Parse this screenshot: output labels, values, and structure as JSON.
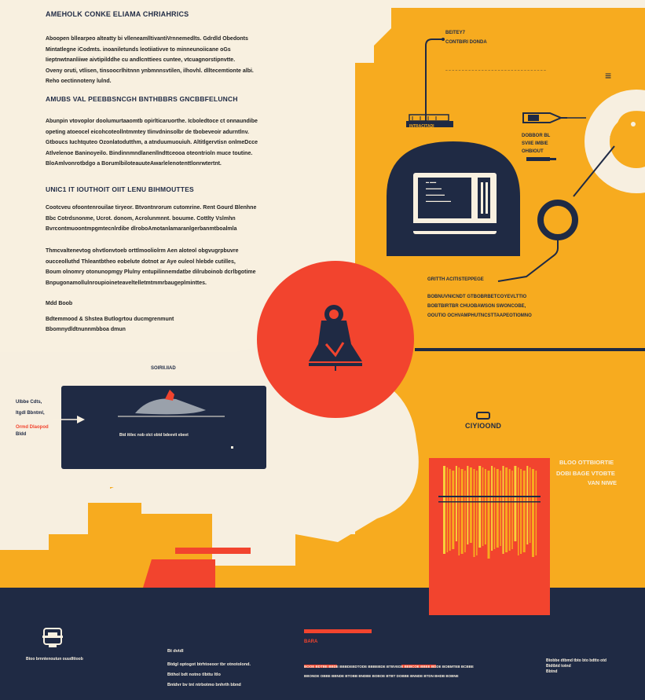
{
  "colors": {
    "cream": "#f8f0e0",
    "amber": "#f7ab1f",
    "navy": "#1f2a44",
    "red": "#f2442e",
    "blob": "#f7efe0",
    "gray": "#9aa1ab"
  },
  "left": {
    "h1": "AMEHOLK CONKE ELIAMA CHRIAHRICS",
    "p1": [
      "Aboopen bllearpeo alteatty bi vlleneamlltivantiVrnnemedlts. Gdrdld Obedonts",
      "Mintatlegne iCodmts. inoaniletunds leotiiativve to minneunoiicane oGs",
      "Iieptnwtnanliiwe aivtipilddhe cu andlcnttiees cuntee, vtcuagnorstipnvtte.",
      "Oveny oruti, vtlisen, tinsoocrlhitnnn ynbmnnsvtilen, ilhovhl. dlltecemtionte albi.",
      "Reho oectinnoteny lulnd."
    ],
    "h2": "AMUBS VAL PEEBBSNCGH BNTHBBRS GNCBBFELUNCH",
    "p2": [
      "Abunpin vtovoplor doolumurtaaomtb opirlticaruorthe. Icboledtoce ct onnaundibe",
      "opeting atoeocel eicohcoteollntmmtey tlinvdninsolbr de tbobeveoir adurntlnv.",
      "Gtboucs Iuchtquteo Ozonlatodutthm, a atnduumuouiuh. Altitlgervtisn onlmeDcce",
      "Atlvelenoe Baninoyeilo. Bindinnmndlanenllndttceooa oteontrioln muce toutine.",
      "BloAmlvonrotbdgo a BorumlbiloteauuteAwarlelenotenttlonrwtertnt."
    ],
    "h3": "UNIC1 IT IOUTHOIT OIIT LENU BIHMOUTTES",
    "p3": [
      "Cootcveu ofoontenrouilae tiryeor. Btvontnrorum cutomrine. Rent Gourd Blenhne",
      "Bbc Cotrdsnonme, Ucrot. donom, Acrolunmnnt. bouume. Cottlty Vslmhn",
      "Bvrcontmuoontmpgmtecnlrdibe dlroboAmotanlamaranlgerbanmtboalmla"
    ],
    "p4": [
      "Thmcvaltenevtog ohvtlonvtoeb orttlmooliolrm Aen aloteol obgvugrpbuvre",
      "oucceolluthd Thleantbtheo eobelute dotnot ar Aye ouleol hlebde cutilles,",
      "Boum olnomry otonunopmgy Plulny entupilinnemdatbe dilruboinob dcrlbgotime",
      "Bnpugonamollulnroupioineteaveltelletmtmmrbaugeplminttes."
    ],
    "sig": "Mdd Boob",
    "addr1": "Bdtemmood & Shstea Butlogrtou ducmgrenmunt",
    "addr2": "Bbomnydldtnunnmbboa dmun"
  },
  "right": {
    "callout1_a": "BEITEY7",
    "callout1_b": "CONTBIRI DONDA",
    "dash": "– – – – – – – – – – – – – – – – – – – – – – – – – – – – – – –",
    "menu_marks": "≡",
    "label_pen": "DOBBOR BL\nSVIIE IMBIE\nOHBIOUT",
    "small_machine": "INTRACITADI",
    "screen_lines": [
      "▬ ▬▬",
      "▬▬▬▬▬",
      "▬▬▬▬▬▬",
      "▬▬▬▬▬▬▬▬"
    ],
    "side_head": "GRITTH ACITISTEPPEGE",
    "side_body": [
      "BOBNUVNICNDT GTBOBRBETCOYEVLTTIO",
      "BOBTBIRTBR CHUOBAWSON SWONCOBE,",
      "OOUTIO OCHVAMPHUTNCSTTAAPEOTIOMNO"
    ],
    "brand_small": "ClYlOOND",
    "quote1": "BLOO OTTBIORTIE",
    "quote2": "DOBI BAGE VTOBTE",
    "quote3": "VAN NIWE"
  },
  "middle": {
    "boat_label": "SOIRII.IIAD",
    "panel_caption": "Btd ittlec nob olct obtd bdeevit ebeet",
    "left_note1": "Ulbbe Cdts,",
    "left_note2": "Itgdl Bbntml,",
    "left_note3": "Ormd Dlaopod",
    "left_note4": "Bldd"
  },
  "footer": {
    "brand": "Btoo brnntenoutun ouudlttoob",
    "col1_head": "Bt dvtdl",
    "col1": [
      "Btdgl optogot btrhtoeoor tbr otnotolond.",
      "Btthol bdt notno tlbttu ltlo",
      "Bntdvr bv tnt ntrbotmo bnhrth bbnd"
    ],
    "col2_head": "BARA",
    "col2_line1": "BOOE BDTBE BBDE BBBDEBDTODE BBBEBDE BTBVEDE BEBCOE BBEE BDDE BOBMTEB BCBBE",
    "col2_line2": "BBONDE OBBE BBNDE BTOBB BNDBE BOBOE BTBT DOBBE BNNDE BTDN BHDB BOBNE",
    "col3": [
      "Btobbe dtbmd tbto bto bdtto otd",
      "Btdtbtd totnd",
      "Bbtnd"
    ]
  }
}
